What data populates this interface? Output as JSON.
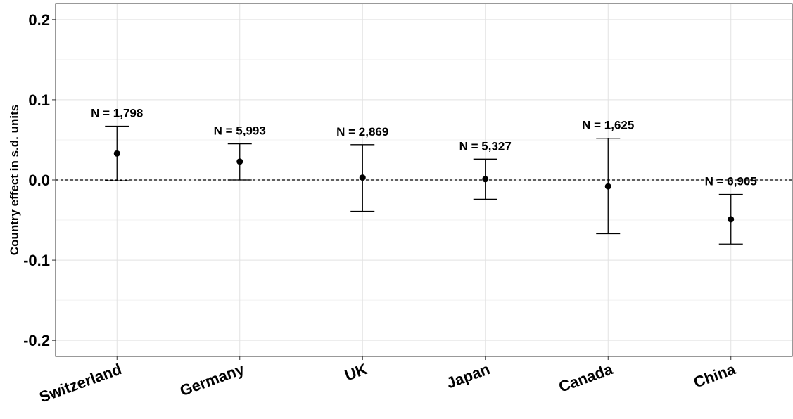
{
  "chart_data": {
    "type": "errorbar",
    "ylabel": "Country effect in s.d. units",
    "xlabel": "",
    "ylim": [
      -0.22,
      0.22
    ],
    "yticks": [
      0.2,
      0.1,
      0.0,
      -0.1,
      -0.2
    ],
    "ytick_labels": [
      "0.2",
      "0.1",
      "0.0",
      "-0.1",
      "-0.2"
    ],
    "grid": true,
    "reference_line": {
      "y": 0.0,
      "style": "dashed"
    },
    "categories": [
      "Switzerland",
      "Germany",
      "UK",
      "Japan",
      "Canada",
      "China"
    ],
    "estimates": [
      0.033,
      0.023,
      0.003,
      0.001,
      -0.008,
      -0.049
    ],
    "ci_lower": [
      -0.001,
      0.0,
      -0.039,
      -0.024,
      -0.067,
      -0.08
    ],
    "ci_upper": [
      0.067,
      0.045,
      0.044,
      0.026,
      0.052,
      -0.018
    ],
    "n_labels": [
      "N = 1,798",
      "N = 5,993",
      "N = 2,869",
      "N = 5,327",
      "N = 1,625",
      "N = 6,905"
    ]
  }
}
